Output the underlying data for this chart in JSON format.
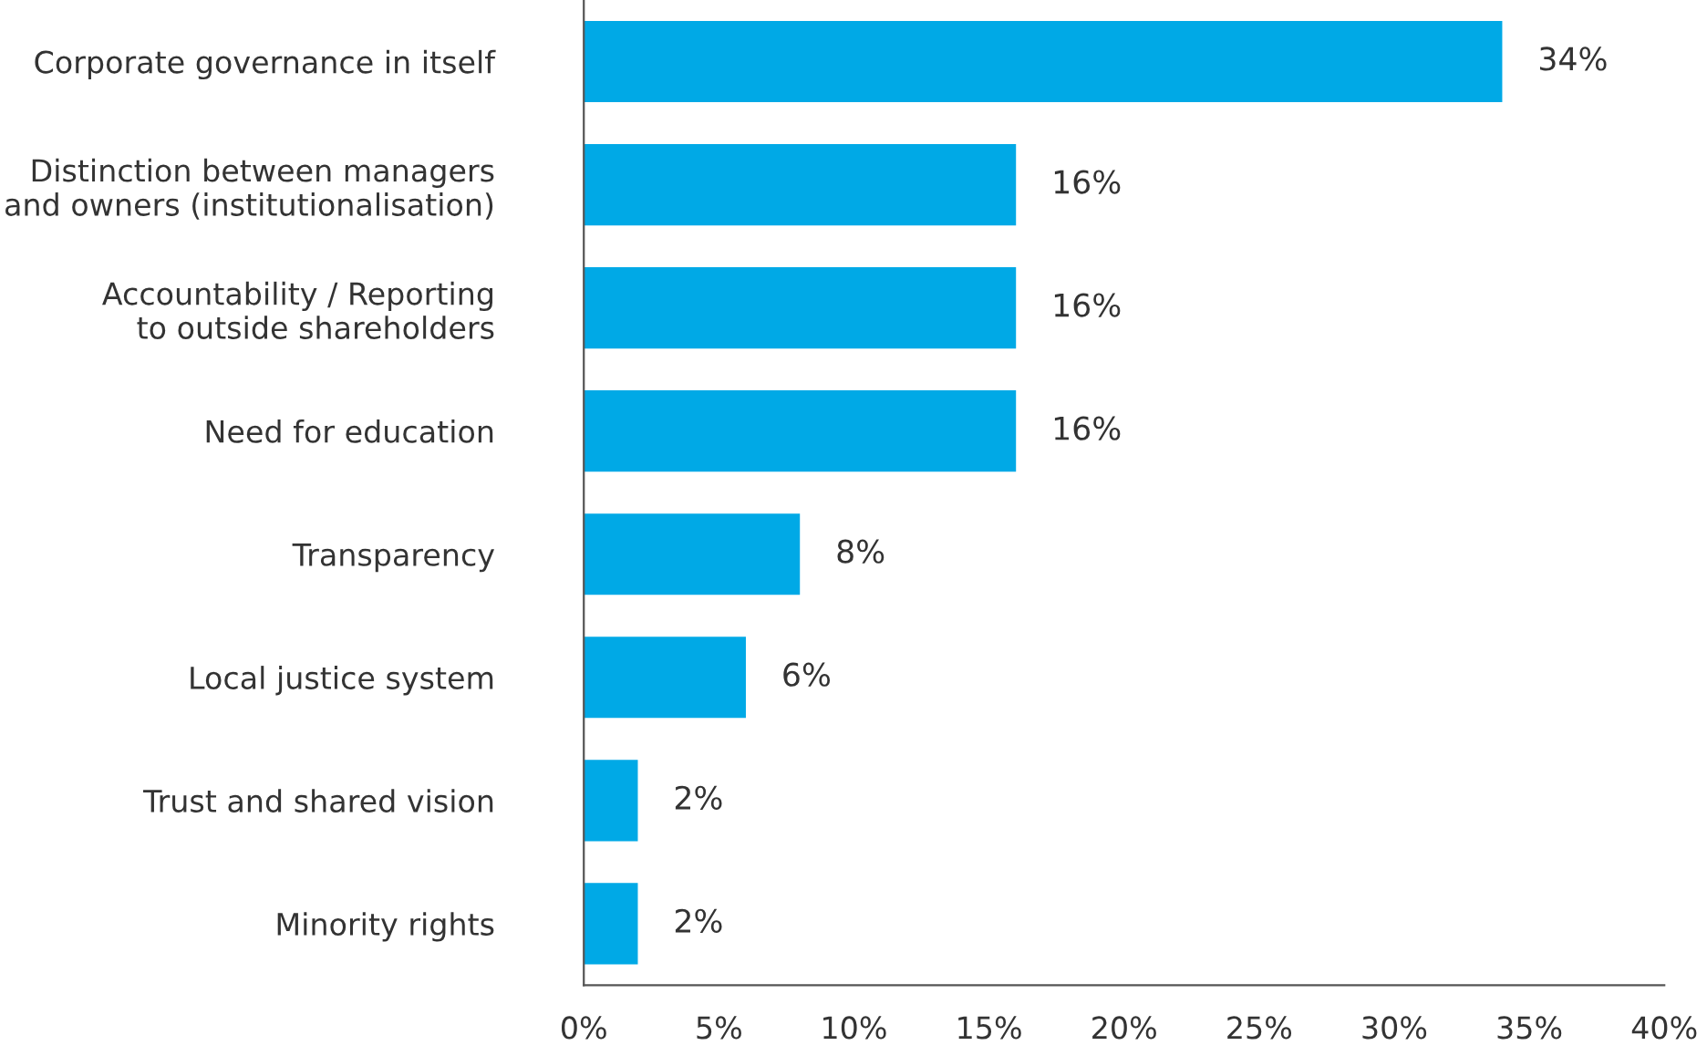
{
  "chart_data": {
    "type": "bar",
    "orientation": "horizontal",
    "categories": [
      "Corporate governance in itself",
      "Distinction between managers\nand owners (institutionalisation)",
      "Accountability / Reporting\nto outside shareholders",
      "Need for education",
      "Transparency",
      "Local justice system",
      "Trust and shared vision",
      "Minority rights"
    ],
    "values": [
      34,
      16,
      16,
      16,
      8,
      6,
      2,
      2
    ],
    "value_labels": [
      "34%",
      "16%",
      "16%",
      "16%",
      "8%",
      "6%",
      "2%",
      "2%"
    ],
    "color": "#00a9e6",
    "xlim": [
      0,
      40
    ],
    "xticks": [
      {
        "value": 0,
        "label": "0%"
      },
      {
        "value": 5,
        "label": "5%"
      },
      {
        "value": 10,
        "label": "10%"
      },
      {
        "value": 15,
        "label": "15%"
      },
      {
        "value": 20,
        "label": "20%"
      },
      {
        "value": 25,
        "label": "25%"
      },
      {
        "value": 30,
        "label": "30%"
      },
      {
        "value": 35,
        "label": "35%"
      },
      {
        "value": 40,
        "label": "40%"
      }
    ],
    "grid": false,
    "legend": false
  }
}
